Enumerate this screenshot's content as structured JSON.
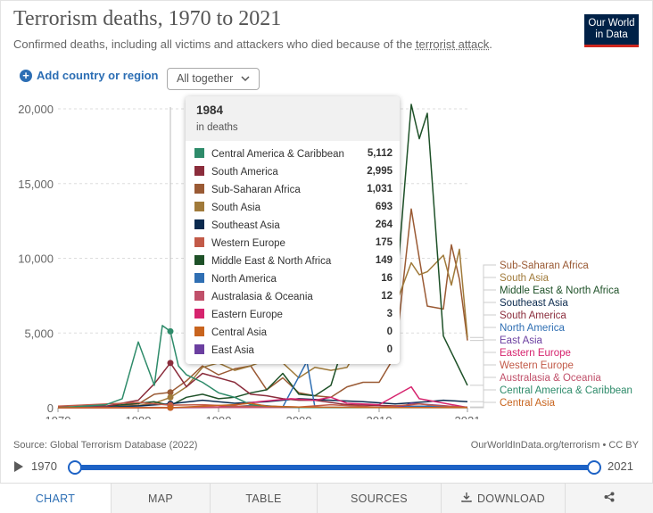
{
  "header": {
    "title": "Terrorism deaths, 1970 to 2021",
    "subtitle_pre": "Confirmed deaths, including all victims and attackers who died because of the ",
    "subtitle_link": "terrorist attack",
    "subtitle_post": ".",
    "logo_line1": "Our World",
    "logo_line2": "in Data"
  },
  "controls": {
    "add_country": "Add country or region",
    "select_value": "All together"
  },
  "tooltip": {
    "year": "1984",
    "unit": "in deaths",
    "rows": [
      {
        "label": "Central America & Caribbean",
        "value": "5,112",
        "color": "#2e8b6a"
      },
      {
        "label": "South America",
        "value": "2,995",
        "color": "#8b2d3c"
      },
      {
        "label": "Sub-Saharan Africa",
        "value": "1,031",
        "color": "#9a5a34"
      },
      {
        "label": "South Asia",
        "value": "693",
        "color": "#a07a3a"
      },
      {
        "label": "Southeast Asia",
        "value": "264",
        "color": "#0b2a4e"
      },
      {
        "label": "Western Europe",
        "value": "175",
        "color": "#c25a48"
      },
      {
        "label": "Middle East & North Africa",
        "value": "149",
        "color": "#1e5128"
      },
      {
        "label": "North America",
        "value": "16",
        "color": "#2f6fb3"
      },
      {
        "label": "Australasia & Oceania",
        "value": "12",
        "color": "#c0506a"
      },
      {
        "label": "Eastern Europe",
        "value": "3",
        "color": "#d6246e"
      },
      {
        "label": "Central Asia",
        "value": "0",
        "color": "#c8641e"
      },
      {
        "label": "East Asia",
        "value": "0",
        "color": "#6b3fa0"
      }
    ]
  },
  "chart_data": {
    "type": "line",
    "title": "Terrorism deaths, 1970 to 2021",
    "xlim": [
      1970,
      2021
    ],
    "ylim": [
      0,
      20000
    ],
    "x_ticks": [
      "1970",
      "1980",
      "1990",
      "2000",
      "2010",
      "2021"
    ],
    "y_ticks": [
      "0",
      "5,000",
      "10,000",
      "15,000",
      "20,000"
    ],
    "grid": true,
    "legend": "right",
    "hover_year": 1984,
    "series": [
      {
        "name": "Sub-Saharan Africa",
        "color": "#9a5a34",
        "points": [
          [
            1970,
            20
          ],
          [
            1976,
            100
          ],
          [
            1980,
            250
          ],
          [
            1982,
            900
          ],
          [
            1984,
            1031
          ],
          [
            1986,
            1800
          ],
          [
            1988,
            2800
          ],
          [
            1990,
            2200
          ],
          [
            1992,
            2600
          ],
          [
            1994,
            2800
          ],
          [
            1996,
            1200
          ],
          [
            1998,
            2000
          ],
          [
            2000,
            1000
          ],
          [
            2002,
            800
          ],
          [
            2004,
            700
          ],
          [
            2006,
            1400
          ],
          [
            2008,
            1700
          ],
          [
            2010,
            1700
          ],
          [
            2012,
            3500
          ],
          [
            2014,
            13300
          ],
          [
            2015,
            10000
          ],
          [
            2016,
            6800
          ],
          [
            2018,
            6600
          ],
          [
            2019,
            10900
          ],
          [
            2020,
            8600
          ],
          [
            2021,
            4500
          ]
        ]
      },
      {
        "name": "South Asia",
        "color": "#a07a3a",
        "points": [
          [
            1970,
            50
          ],
          [
            1976,
            80
          ],
          [
            1980,
            150
          ],
          [
            1982,
            300
          ],
          [
            1984,
            693
          ],
          [
            1986,
            1400
          ],
          [
            1988,
            2700
          ],
          [
            1990,
            3000
          ],
          [
            1992,
            2500
          ],
          [
            1994,
            2800
          ],
          [
            1996,
            3200
          ],
          [
            1998,
            3000
          ],
          [
            2000,
            2000
          ],
          [
            2002,
            2700
          ],
          [
            2004,
            2500
          ],
          [
            2006,
            2700
          ],
          [
            2008,
            4500
          ],
          [
            2010,
            5700
          ],
          [
            2012,
            6800
          ],
          [
            2014,
            9700
          ],
          [
            2015,
            8900
          ],
          [
            2016,
            9100
          ],
          [
            2018,
            10200
          ],
          [
            2019,
            8200
          ],
          [
            2020,
            10600
          ],
          [
            2021,
            4700
          ]
        ]
      },
      {
        "name": "Middle East & North Africa",
        "color": "#1e5128",
        "points": [
          [
            1970,
            20
          ],
          [
            1976,
            100
          ],
          [
            1980,
            300
          ],
          [
            1982,
            400
          ],
          [
            1984,
            149
          ],
          [
            1986,
            700
          ],
          [
            1988,
            900
          ],
          [
            1990,
            600
          ],
          [
            1992,
            700
          ],
          [
            1994,
            1000
          ],
          [
            1996,
            1200
          ],
          [
            1998,
            2300
          ],
          [
            2000,
            900
          ],
          [
            2002,
            800
          ],
          [
            2004,
            1500
          ],
          [
            2006,
            5000
          ],
          [
            2008,
            4000
          ],
          [
            2010,
            3500
          ],
          [
            2012,
            7000
          ],
          [
            2014,
            20300
          ],
          [
            2015,
            18000
          ],
          [
            2016,
            19700
          ],
          [
            2018,
            4800
          ],
          [
            2021,
            1500
          ]
        ]
      },
      {
        "name": "Southeast Asia",
        "color": "#0b2a4e",
        "points": [
          [
            1970,
            10
          ],
          [
            1976,
            40
          ],
          [
            1980,
            120
          ],
          [
            1984,
            264
          ],
          [
            1988,
            500
          ],
          [
            1992,
            300
          ],
          [
            1996,
            400
          ],
          [
            2000,
            600
          ],
          [
            2004,
            500
          ],
          [
            2008,
            400
          ],
          [
            2012,
            250
          ],
          [
            2016,
            400
          ],
          [
            2018,
            500
          ],
          [
            2021,
            400
          ]
        ]
      },
      {
        "name": "South America",
        "color": "#8b2d3c",
        "points": [
          [
            1970,
            20
          ],
          [
            1976,
            100
          ],
          [
            1980,
            500
          ],
          [
            1982,
            1600
          ],
          [
            1984,
            2995
          ],
          [
            1986,
            1400
          ],
          [
            1988,
            2300
          ],
          [
            1990,
            2000
          ],
          [
            1992,
            1700
          ],
          [
            1994,
            900
          ],
          [
            1996,
            800
          ],
          [
            1998,
            600
          ],
          [
            2000,
            500
          ],
          [
            2002,
            500
          ],
          [
            2006,
            200
          ],
          [
            2010,
            150
          ],
          [
            2014,
            100
          ],
          [
            2021,
            50
          ]
        ]
      },
      {
        "name": "North America",
        "color": "#2f6fb3",
        "points": [
          [
            1970,
            30
          ],
          [
            1980,
            30
          ],
          [
            1984,
            16
          ],
          [
            1990,
            20
          ],
          [
            1995,
            180
          ],
          [
            1998,
            50
          ],
          [
            2001,
            3100
          ],
          [
            2002,
            30
          ],
          [
            2010,
            30
          ],
          [
            2016,
            100
          ],
          [
            2021,
            40
          ]
        ]
      },
      {
        "name": "East Asia",
        "color": "#6b3fa0",
        "points": [
          [
            1970,
            0
          ],
          [
            1984,
            0
          ],
          [
            1990,
            10
          ],
          [
            1995,
            20
          ],
          [
            2000,
            10
          ],
          [
            2010,
            20
          ],
          [
            2013,
            100
          ],
          [
            2014,
            300
          ],
          [
            2021,
            20
          ]
        ]
      },
      {
        "name": "Eastern Europe",
        "color": "#d6246e",
        "points": [
          [
            1970,
            0
          ],
          [
            1984,
            3
          ],
          [
            1990,
            50
          ],
          [
            1995,
            400
          ],
          [
            1999,
            600
          ],
          [
            2002,
            500
          ],
          [
            2004,
            700
          ],
          [
            2006,
            300
          ],
          [
            2010,
            200
          ],
          [
            2014,
            1400
          ],
          [
            2015,
            600
          ],
          [
            2021,
            20
          ]
        ]
      },
      {
        "name": "Western Europe",
        "color": "#c25a48",
        "points": [
          [
            1970,
            100
          ],
          [
            1974,
            200
          ],
          [
            1978,
            300
          ],
          [
            1980,
            350
          ],
          [
            1984,
            175
          ],
          [
            1988,
            200
          ],
          [
            1992,
            100
          ],
          [
            1996,
            100
          ],
          [
            2000,
            50
          ],
          [
            2004,
            200
          ],
          [
            2010,
            30
          ],
          [
            2015,
            250
          ],
          [
            2017,
            150
          ],
          [
            2021,
            30
          ]
        ]
      },
      {
        "name": "Australasia & Oceania",
        "color": "#c0506a",
        "points": [
          [
            1970,
            0
          ],
          [
            1984,
            12
          ],
          [
            1990,
            20
          ],
          [
            2000,
            20
          ],
          [
            2010,
            10
          ],
          [
            2021,
            5
          ]
        ]
      },
      {
        "name": "Central America & Caribbean",
        "color": "#2e8b6a",
        "points": [
          [
            1970,
            0
          ],
          [
            1976,
            200
          ],
          [
            1978,
            600
          ],
          [
            1980,
            4400
          ],
          [
            1982,
            1500
          ],
          [
            1983,
            5500
          ],
          [
            1984,
            5112
          ],
          [
            1985,
            2800
          ],
          [
            1986,
            2200
          ],
          [
            1988,
            1700
          ],
          [
            1990,
            1000
          ],
          [
            1992,
            700
          ],
          [
            1994,
            200
          ],
          [
            1996,
            100
          ],
          [
            2000,
            10
          ],
          [
            2021,
            5
          ]
        ]
      },
      {
        "name": "Central Asia",
        "color": "#c8641e",
        "points": [
          [
            1970,
            0
          ],
          [
            1984,
            0
          ],
          [
            1992,
            200
          ],
          [
            1994,
            300
          ],
          [
            1996,
            100
          ],
          [
            2000,
            50
          ],
          [
            2010,
            20
          ],
          [
            2021,
            10
          ]
        ]
      }
    ]
  },
  "footer": {
    "source": "Source: Global Terrorism Database (2022)",
    "credit": "OurWorldInData.org/terrorism • CC BY"
  },
  "timeline": {
    "start": "1970",
    "end": "2021",
    "start_fraction": 0,
    "end_fraction": 1
  },
  "tabs": [
    {
      "label": "CHART",
      "active": true
    },
    {
      "label": "MAP"
    },
    {
      "label": "TABLE"
    },
    {
      "label": "SOURCES"
    },
    {
      "label": "DOWNLOAD",
      "icon": "download-icon"
    },
    {
      "label": "",
      "icon": "share-icon"
    }
  ]
}
